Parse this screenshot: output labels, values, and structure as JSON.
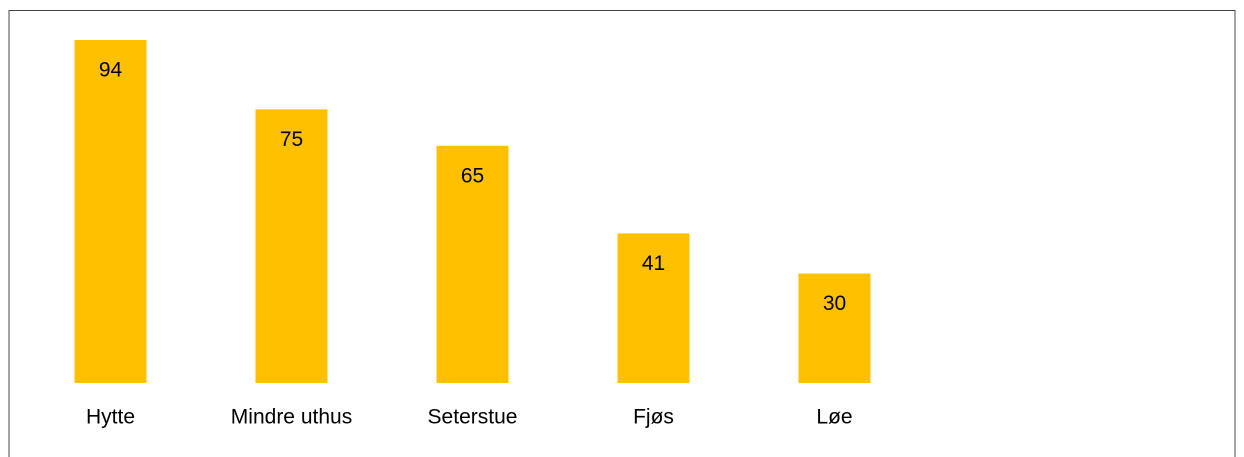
{
  "chart_data": {
    "type": "bar",
    "categories": [
      "Hytte",
      "Mindre uthus",
      "Seterstue",
      "Fjøs",
      "Løe"
    ],
    "values": [
      94,
      75,
      65,
      41,
      30
    ],
    "color": "#FFC000"
  }
}
